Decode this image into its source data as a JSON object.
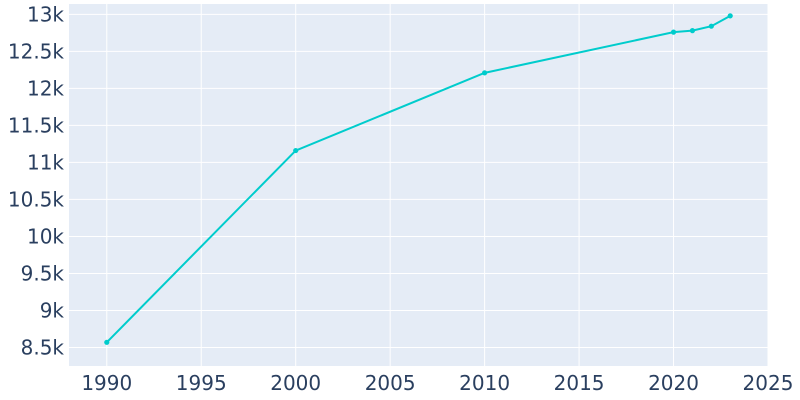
{
  "chart_data": {
    "type": "line",
    "title": "",
    "xlabel": "",
    "ylabel": "",
    "xlim": [
      1988,
      2025
    ],
    "ylim": [
      8250,
      13140
    ],
    "x_ticks": [
      1990,
      1995,
      2000,
      2005,
      2010,
      2015,
      2020,
      2025
    ],
    "x_tick_labels": [
      "1990",
      "1995",
      "2000",
      "2005",
      "2010",
      "2015",
      "2020",
      "2025"
    ],
    "y_ticks": [
      8500,
      9000,
      9500,
      10000,
      10500,
      11000,
      11500,
      12000,
      12500,
      13000
    ],
    "y_tick_labels": [
      "8.5k",
      "9k",
      "9.5k",
      "10k",
      "10.5k",
      "11k",
      "11.5k",
      "12k",
      "12.5k",
      "13k"
    ],
    "grid": true,
    "legend": "none",
    "colors": {
      "plot_background": "#e5ecf6",
      "series": "#00cccc",
      "grid": "#ffffff",
      "tick_text": "#2a3f5f"
    },
    "series": [
      {
        "x": [
          1990,
          2000,
          2010,
          2020,
          2021,
          2022,
          2023
        ],
        "values": [
          8570,
          11160,
          12210,
          12760,
          12780,
          12840,
          12980
        ]
      }
    ]
  }
}
